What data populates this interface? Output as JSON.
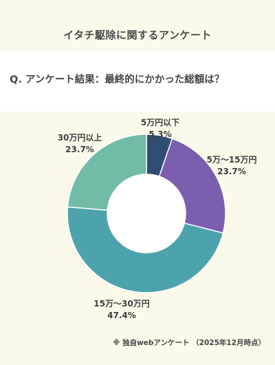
{
  "header": {
    "title": "イタチ駆除に関するアンケート",
    "question": "Q. アンケート結果：最終的にかかった総額は？"
  },
  "chart_data": {
    "type": "pie",
    "variant": "donut",
    "categories": [
      "5万円以下",
      "5万～15万円",
      "15万～30万円",
      "30万円以上"
    ],
    "values": [
      5.3,
      23.7,
      47.4,
      23.7
    ],
    "value_labels": [
      "5.3%",
      "23.7%",
      "47.4%",
      "23.7%"
    ],
    "colors": [
      "#2f4e72",
      "#7c5eae",
      "#4da3ac",
      "#72bba8"
    ],
    "start": "top",
    "direction": "clockwise"
  },
  "footnote": "※ 独自webアンケート （2025年12月時点）"
}
